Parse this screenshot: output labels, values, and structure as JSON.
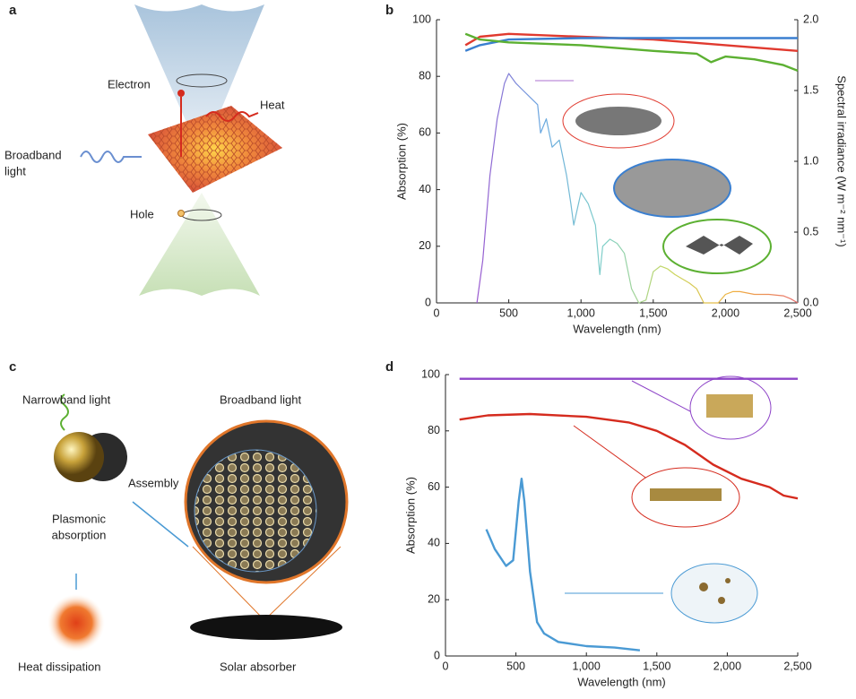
{
  "panels": {
    "a": {
      "letter": "a",
      "electron": "Electron",
      "heat": "Heat",
      "light_1": "Broadband",
      "light_2": "light",
      "hole": "Hole"
    },
    "b": {
      "letter": "b"
    },
    "c": {
      "letter": "c",
      "narrowband": "Narrowband light",
      "broadband": "Broadband light",
      "assembly": "Assembly",
      "plasmonic_1": "Plasmonic",
      "plasmonic_2": "absorption",
      "heat_dissipation": "Heat dissipation",
      "solar_absorber": "Solar absorber"
    },
    "d": {
      "letter": "d"
    }
  },
  "chart_data": [
    {
      "type": "line",
      "xlabel": "Wavelength (nm)",
      "ylabel": "Absorption (%)",
      "y2label": "Spectral irradiance (W m⁻² nm⁻¹)",
      "xlim": [
        0,
        2500
      ],
      "xticks": [
        0,
        500,
        {
          "value": 1000,
          "label": "1,000"
        },
        {
          "value": 1500,
          "label": "1,500"
        },
        {
          "value": 2000,
          "label": "2,000"
        },
        {
          "value": 2500,
          "label": "2,500"
        }
      ],
      "ylim": [
        0,
        100
      ],
      "yticks": [
        0,
        20,
        40,
        60,
        80,
        100
      ],
      "y2lim": [
        0,
        2
      ],
      "y2ticks": [
        {
          "value": 0,
          "label": "0.0"
        },
        0.5,
        {
          "value": 1,
          "label": "1.0"
        },
        1.5,
        {
          "value": 2,
          "label": "2.0"
        }
      ],
      "series": [
        {
          "color": "#e03a2f",
          "x": [
            200,
            300,
            500,
            1000,
            1500,
            2000,
            2500
          ],
          "values": [
            91,
            94,
            95,
            94,
            93,
            91,
            89
          ]
        },
        {
          "color": "#3a7fd0",
          "x": [
            200,
            300,
            500,
            1000,
            1500,
            2000,
            2500
          ],
          "values": [
            89,
            91,
            93,
            93.5,
            93.5,
            93.5,
            93.5
          ]
        },
        {
          "color": "#5cb032",
          "x": [
            200,
            300,
            500,
            1000,
            1500,
            1800,
            1900,
            1950,
            2000,
            2200,
            2400,
            2500
          ],
          "values": [
            95,
            93,
            92,
            91,
            89,
            88,
            85,
            86,
            87,
            86,
            84,
            82
          ]
        },
        {
          "color": "#b9a0d8",
          "gradient": [
            "#9b59d0",
            "#6aa8e0",
            "#80d0c8",
            "#c8d860",
            "#f0b040",
            "#e87070"
          ],
          "axis": "y2",
          "x": [
            280,
            320,
            370,
            420,
            470,
            500,
            550,
            600,
            650,
            700,
            720,
            760,
            800,
            850,
            900,
            930,
            950,
            1000,
            1050,
            1100,
            1130,
            1150,
            1200,
            1250,
            1300,
            1350,
            1400,
            1450,
            1500,
            1550,
            1600,
            1650,
            1700,
            1750,
            1800,
            1850,
            1950,
            2000,
            2050,
            2100,
            2200,
            2300,
            2400,
            2450,
            2500
          ],
          "values": [
            0,
            0.3,
            0.9,
            1.3,
            1.55,
            1.62,
            1.55,
            1.5,
            1.45,
            1.4,
            1.2,
            1.3,
            1.1,
            1.15,
            0.9,
            0.7,
            0.55,
            0.78,
            0.7,
            0.55,
            0.2,
            0.4,
            0.45,
            0.42,
            0.35,
            0.1,
            0,
            0.02,
            0.22,
            0.26,
            0.24,
            0.2,
            0.17,
            0.14,
            0.1,
            0,
            0,
            0.06,
            0.08,
            0.08,
            0.06,
            0.06,
            0.05,
            0.03,
            0
          ]
        }
      ]
    },
    {
      "type": "line",
      "xlabel": "Wavelength (nm)",
      "ylabel": "Absorption (%)",
      "xlim": [
        0,
        2500
      ],
      "xticks": [
        0,
        500,
        {
          "value": 1000,
          "label": "1,000"
        },
        {
          "value": 1500,
          "label": "1,500"
        },
        {
          "value": 2000,
          "label": "2,000"
        },
        {
          "value": 2500,
          "label": "2,500"
        }
      ],
      "ylim": [
        0,
        100
      ],
      "yticks": [
        0,
        20,
        40,
        60,
        80,
        100
      ],
      "series": [
        {
          "color": "#8e44c8",
          "x": [
            100,
            2500
          ],
          "values": [
            98.5,
            98.5
          ]
        },
        {
          "color": "#d52b1e",
          "x": [
            100,
            300,
            600,
            1000,
            1300,
            1500,
            1700,
            1900,
            2100,
            2300,
            2400,
            2500
          ],
          "values": [
            84,
            85.5,
            86,
            85,
            83,
            80,
            75,
            68,
            63,
            60,
            57,
            56
          ]
        },
        {
          "color": "#4a9ad4",
          "x": [
            290,
            350,
            430,
            480,
            520,
            540,
            560,
            600,
            650,
            700,
            800,
            1000,
            1200,
            1380
          ],
          "values": [
            45,
            38,
            32,
            34,
            55,
            63,
            55,
            30,
            12,
            8,
            5,
            3.5,
            3,
            2
          ]
        }
      ]
    }
  ]
}
